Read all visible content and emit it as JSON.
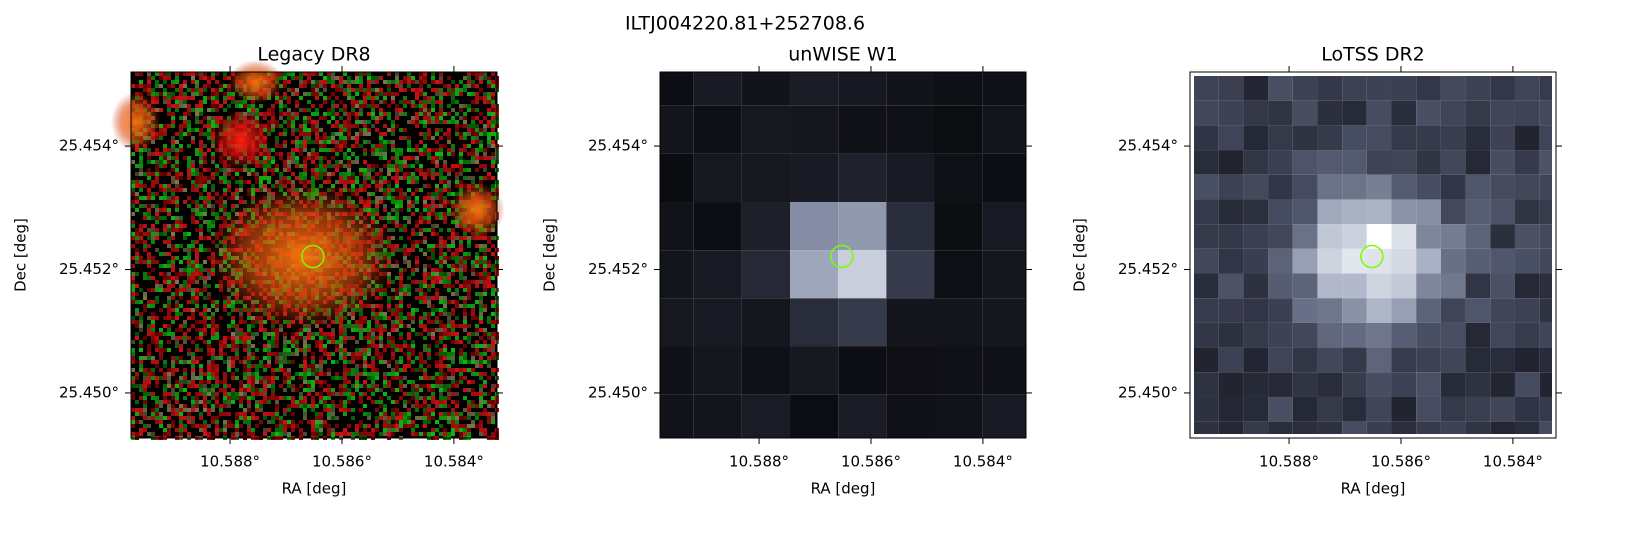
{
  "title": "ILTJ004220.81+252708.6",
  "chart_data": [
    {
      "type": "image",
      "title": "Legacy DR8",
      "xlabel": "RA [deg]",
      "ylabel": "Dec [deg]",
      "xlim": [
        10.58977,
        10.58323
      ],
      "ylim": [
        25.44927,
        25.4552
      ],
      "xticks": [
        {
          "value": 10.588,
          "label": "10.588°"
        },
        {
          "value": 10.586,
          "label": "10.586°"
        },
        {
          "value": 10.584,
          "label": "10.584°"
        }
      ],
      "yticks": [
        {
          "value": 25.454,
          "label": "25.454°"
        },
        {
          "value": 25.452,
          "label": "25.452°"
        },
        {
          "value": 25.45,
          "label": "25.450°"
        }
      ],
      "source": {
        "ra": 10.58652,
        "dec": 25.45221
      },
      "marker_color": "#7cfc00"
    },
    {
      "type": "image",
      "title": "unWISE W1",
      "xlabel": "RA [deg]",
      "ylabel": "Dec [deg]",
      "xlim": [
        10.58977,
        10.58323
      ],
      "ylim": [
        25.44927,
        25.4552
      ],
      "xticks": [
        {
          "value": 10.588,
          "label": "10.588°"
        },
        {
          "value": 10.586,
          "label": "10.586°"
        },
        {
          "value": 10.584,
          "label": "10.584°"
        }
      ],
      "yticks": [
        {
          "value": 25.454,
          "label": "25.454°"
        },
        {
          "value": 25.452,
          "label": "25.452°"
        },
        {
          "value": 25.45,
          "label": "25.450°"
        }
      ],
      "source": {
        "ra": 10.58652,
        "dec": 25.45221
      },
      "marker_color": "#7cfc00"
    },
    {
      "type": "image",
      "title": "LoTSS DR2",
      "xlabel": "RA [deg]",
      "ylabel": "Dec [deg]",
      "xlim": [
        10.58977,
        10.58323
      ],
      "ylim": [
        25.44927,
        25.4552
      ],
      "xticks": [
        {
          "value": 10.588,
          "label": "10.588°"
        },
        {
          "value": 10.586,
          "label": "10.586°"
        },
        {
          "value": 10.584,
          "label": "10.584°"
        }
      ],
      "yticks": [
        {
          "value": 25.454,
          "label": "25.454°"
        },
        {
          "value": 25.452,
          "label": "25.452°"
        },
        {
          "value": 25.45,
          "label": "25.450°"
        }
      ],
      "source": {
        "ra": 10.58652,
        "dec": 25.45221
      },
      "marker_color": "#7cfc00"
    }
  ]
}
